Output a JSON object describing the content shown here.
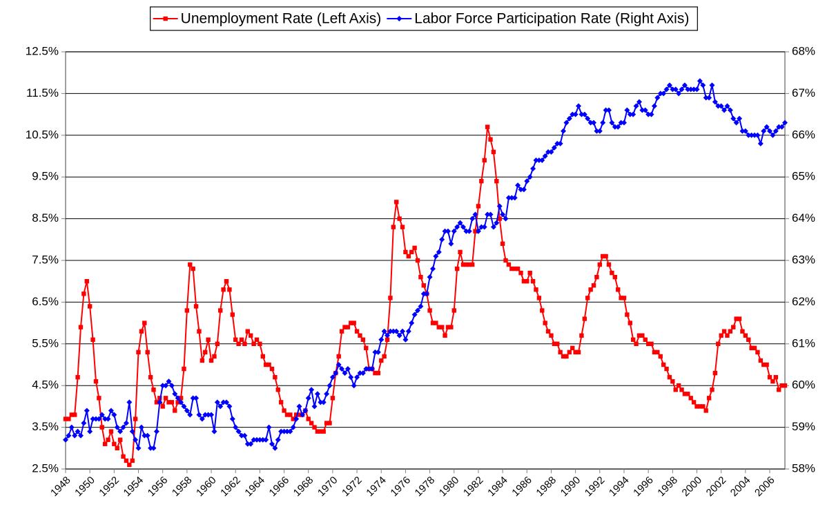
{
  "chart_data": {
    "type": "line",
    "legend": "top",
    "grid": true,
    "categories": [
      "1948",
      null,
      null,
      null,
      null,
      null,
      null,
      null,
      "1950",
      null,
      null,
      null,
      null,
      null,
      null,
      null,
      "1952",
      null,
      null,
      null,
      null,
      null,
      null,
      null,
      "1954",
      null,
      null,
      null,
      null,
      null,
      null,
      null,
      "1956",
      null,
      null,
      null,
      null,
      null,
      null,
      null,
      "1958",
      null,
      null,
      null,
      null,
      null,
      null,
      null,
      "1960",
      null,
      null,
      null,
      null,
      null,
      null,
      null,
      "1962",
      null,
      null,
      null,
      null,
      null,
      null,
      null,
      "1964",
      null,
      null,
      null,
      null,
      null,
      null,
      null,
      "1966",
      null,
      null,
      null,
      null,
      null,
      null,
      null,
      "1968",
      null,
      null,
      null,
      null,
      null,
      null,
      null,
      "1970",
      null,
      null,
      null,
      null,
      null,
      null,
      null,
      "1972",
      null,
      null,
      null,
      null,
      null,
      null,
      null,
      "1974",
      null,
      null,
      null,
      null,
      null,
      null,
      null,
      "1976",
      null,
      null,
      null,
      null,
      null,
      null,
      null,
      "1978",
      null,
      null,
      null,
      null,
      null,
      null,
      null,
      "1980",
      null,
      null,
      null,
      null,
      null,
      null,
      null,
      "1982",
      null,
      null,
      null,
      null,
      null,
      null,
      null,
      "1984",
      null,
      null,
      null,
      null,
      null,
      null,
      null,
      "1986",
      null,
      null,
      null,
      null,
      null,
      null,
      null,
      "1988",
      null,
      null,
      null,
      null,
      null,
      null,
      null,
      "1990",
      null,
      null,
      null,
      null,
      null,
      null,
      null,
      "1992",
      null,
      null,
      null,
      null,
      null,
      null,
      null,
      "1994",
      null,
      null,
      null,
      null,
      null,
      null,
      null,
      "1996",
      null,
      null,
      null,
      null,
      null,
      null,
      null,
      "1998",
      null,
      null,
      null,
      null,
      null,
      null,
      null,
      "2000",
      null,
      null,
      null,
      null,
      null,
      null,
      null,
      "2002",
      null,
      null,
      null,
      null,
      null,
      null,
      null,
      "2004",
      null,
      null,
      null,
      null,
      null,
      null,
      null,
      "2006",
      null,
      null,
      null,
      null,
      null
    ],
    "ylim": [
      2.5,
      12.5
    ],
    "yticks": [
      {
        "value": 2.5,
        "label": "2.5%"
      },
      {
        "value": 3.5,
        "label": "3.5%"
      },
      {
        "value": 4.5,
        "label": "4.5%"
      },
      {
        "value": 5.5,
        "label": "5.5%"
      },
      {
        "value": 6.5,
        "label": "6.5%"
      },
      {
        "value": 7.5,
        "label": "7.5%"
      },
      {
        "value": 8.5,
        "label": "8.5%"
      },
      {
        "value": 9.5,
        "label": "9.5%"
      },
      {
        "value": 10.5,
        "label": "10.5%"
      },
      {
        "value": 11.5,
        "label": "11.5%"
      },
      {
        "value": 12.5,
        "label": "12.5%"
      }
    ],
    "y2lim": [
      58,
      68
    ],
    "y2ticks": [
      {
        "value": 58,
        "label": "58%"
      },
      {
        "value": 59,
        "label": "59%"
      },
      {
        "value": 60,
        "label": "60%"
      },
      {
        "value": 61,
        "label": "61%"
      },
      {
        "value": 62,
        "label": "62%"
      },
      {
        "value": 63,
        "label": "63%"
      },
      {
        "value": 64,
        "label": "64%"
      },
      {
        "value": 65,
        "label": "65%"
      },
      {
        "value": 66,
        "label": "66%"
      },
      {
        "value": 67,
        "label": "67%"
      },
      {
        "value": 68,
        "label": "68%"
      }
    ],
    "series": [
      {
        "name": "Unemployment Rate (Left Axis)",
        "color": "#ff0000",
        "marker": "square",
        "axis": "y",
        "values": [
          3.7,
          3.7,
          3.8,
          3.8,
          4.7,
          5.9,
          6.7,
          7.0,
          6.4,
          5.6,
          4.6,
          4.2,
          3.5,
          3.1,
          3.2,
          3.4,
          3.1,
          3.0,
          3.2,
          2.8,
          2.7,
          2.6,
          2.7,
          3.7,
          5.3,
          5.8,
          6.0,
          5.3,
          4.7,
          4.4,
          4.1,
          4.2,
          4.0,
          4.2,
          4.1,
          4.1,
          3.9,
          4.1,
          4.2,
          4.9,
          6.3,
          7.4,
          7.3,
          6.4,
          5.8,
          5.1,
          5.3,
          5.6,
          5.1,
          5.2,
          5.5,
          6.3,
          6.8,
          7.0,
          6.8,
          6.2,
          5.6,
          5.5,
          5.6,
          5.5,
          5.8,
          5.7,
          5.5,
          5.6,
          5.5,
          5.2,
          5.0,
          5.0,
          4.9,
          4.7,
          4.4,
          4.1,
          3.9,
          3.8,
          3.8,
          3.7,
          3.8,
          3.8,
          3.8,
          3.9,
          3.7,
          3.6,
          3.5,
          3.4,
          3.4,
          3.4,
          3.6,
          3.6,
          4.2,
          4.8,
          5.2,
          5.8,
          5.9,
          5.9,
          6.0,
          6.0,
          5.8,
          5.7,
          5.6,
          5.4,
          4.9,
          4.9,
          4.8,
          4.8,
          5.1,
          5.2,
          5.6,
          6.6,
          8.3,
          8.9,
          8.5,
          8.3,
          7.7,
          7.6,
          7.7,
          7.8,
          7.5,
          7.1,
          6.9,
          6.7,
          6.3,
          6.0,
          6.0,
          5.9,
          5.9,
          5.7,
          5.9,
          5.9,
          6.3,
          7.3,
          7.7,
          7.4,
          7.4,
          7.4,
          7.4,
          8.2,
          8.8,
          9.4,
          9.9,
          10.7,
          10.4,
          10.1,
          9.4,
          8.5,
          7.9,
          7.5,
          7.4,
          7.3,
          7.3,
          7.3,
          7.2,
          7.0,
          7.0,
          7.2,
          7.0,
          6.8,
          6.6,
          6.3,
          6.0,
          5.8,
          5.7,
          5.5,
          5.5,
          5.3,
          5.2,
          5.2,
          5.3,
          5.4,
          5.3,
          5.3,
          5.7,
          6.1,
          6.6,
          6.8,
          6.9,
          7.1,
          7.4,
          7.6,
          7.6,
          7.4,
          7.2,
          7.1,
          6.8,
          6.6,
          6.6,
          6.2,
          6.0,
          5.6,
          5.5,
          5.7,
          5.7,
          5.6,
          5.5,
          5.5,
          5.3,
          5.3,
          5.2,
          5.0,
          4.9,
          4.7,
          4.6,
          4.4,
          4.5,
          4.4,
          4.3,
          4.3,
          4.2,
          4.1,
          4.0,
          4.0,
          4.0,
          3.9,
          4.2,
          4.4,
          4.8,
          5.5,
          5.7,
          5.8,
          5.7,
          5.8,
          5.9,
          6.1,
          6.1,
          5.8,
          5.7,
          5.6,
          5.4,
          5.4,
          5.3,
          5.1,
          5.0,
          5.0,
          4.7,
          4.6,
          4.7,
          4.4,
          4.5,
          4.5
        ]
      },
      {
        "name": "Labor Force Participation Rate (Right Axis)",
        "color": "#0000ff",
        "marker": "diamond",
        "axis": "y2",
        "values": [
          58.7,
          58.8,
          59.0,
          58.8,
          58.9,
          58.8,
          59.1,
          59.4,
          58.9,
          59.2,
          59.2,
          59.2,
          59.3,
          59.2,
          59.2,
          59.4,
          59.3,
          59.0,
          58.9,
          59.0,
          59.1,
          59.6,
          58.9,
          58.7,
          58.5,
          59.0,
          58.8,
          58.8,
          58.5,
          58.5,
          58.9,
          59.6,
          60.0,
          60.0,
          60.1,
          60.0,
          59.8,
          59.7,
          59.6,
          59.5,
          59.4,
          59.3,
          59.7,
          59.7,
          59.3,
          59.2,
          59.3,
          59.3,
          59.3,
          58.9,
          59.6,
          59.5,
          59.6,
          59.6,
          59.5,
          59.2,
          59.0,
          58.9,
          58.8,
          58.8,
          58.6,
          58.6,
          58.7,
          58.7,
          58.7,
          58.7,
          58.7,
          59.0,
          58.6,
          58.5,
          58.7,
          58.9,
          58.9,
          58.9,
          58.9,
          59.0,
          59.2,
          59.5,
          59.3,
          59.4,
          59.7,
          59.9,
          59.5,
          59.8,
          59.6,
          59.6,
          59.8,
          60.0,
          60.2,
          60.3,
          60.5,
          60.4,
          60.3,
          60.4,
          60.2,
          60.0,
          60.2,
          60.3,
          60.3,
          60.4,
          60.4,
          60.4,
          60.8,
          60.8,
          61.1,
          61.3,
          61.2,
          61.3,
          61.3,
          61.3,
          61.2,
          61.3,
          61.1,
          61.3,
          61.5,
          61.7,
          61.8,
          61.9,
          62.2,
          62.2,
          62.6,
          62.8,
          63.1,
          63.2,
          63.5,
          63.7,
          63.7,
          63.4,
          63.7,
          63.8,
          63.9,
          63.8,
          63.7,
          63.7,
          64.0,
          64.1,
          63.7,
          63.8,
          63.8,
          64.1,
          64.1,
          63.8,
          63.9,
          64.3,
          64.1,
          64.0,
          64.5,
          64.5,
          64.5,
          64.8,
          64.7,
          64.7,
          64.9,
          65.0,
          65.2,
          65.4,
          65.4,
          65.4,
          65.5,
          65.6,
          65.6,
          65.7,
          65.8,
          65.8,
          66.1,
          66.3,
          66.4,
          66.5,
          66.5,
          66.7,
          66.5,
          66.5,
          66.4,
          66.3,
          66.3,
          66.1,
          66.1,
          66.3,
          66.6,
          66.6,
          66.3,
          66.2,
          66.2,
          66.3,
          66.3,
          66.6,
          66.5,
          66.5,
          66.7,
          66.8,
          66.6,
          66.6,
          66.5,
          66.5,
          66.7,
          66.9,
          67.0,
          67.0,
          67.1,
          67.2,
          67.1,
          67.1,
          67.0,
          67.1,
          67.2,
          67.1,
          67.1,
          67.1,
          67.1,
          67.3,
          67.2,
          66.9,
          66.9,
          67.2,
          66.8,
          66.7,
          66.7,
          66.6,
          66.7,
          66.6,
          66.4,
          66.3,
          66.4,
          66.1,
          66.1,
          66.0,
          66.0,
          66.0,
          66.0,
          65.8,
          66.1,
          66.2,
          66.1,
          66.0,
          66.1,
          66.2,
          66.2,
          66.3
        ]
      }
    ]
  }
}
